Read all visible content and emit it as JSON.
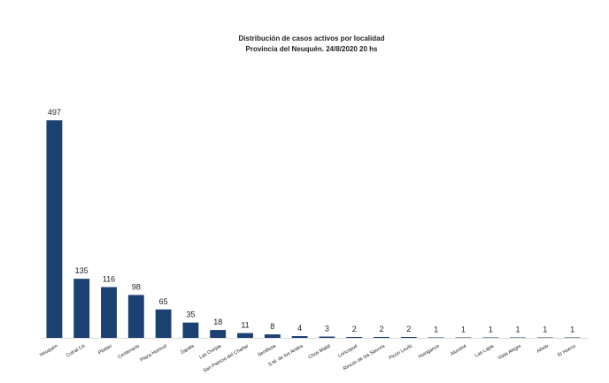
{
  "chart_data": {
    "type": "bar",
    "title": "Distribución de casos activos por localidad",
    "subtitle": "Provincia del Neuquén.  24/8/2020 20 hs",
    "categories": [
      "Neuquén",
      "Cutral Có",
      "Plottier",
      "Centenario",
      "Plaza Huincul",
      "Zapala",
      "Las Ovejas",
      "San Patricio del Chañar",
      "Senillosa",
      "S.M. de los Andes",
      "Chos Malal",
      "Loncopué",
      "Rincón de los Sauces",
      "Picún Leufú",
      "Huinganco",
      "Aluminé",
      "Las Lajas",
      "Vista Alegre",
      "Añelo",
      "El Huecu"
    ],
    "values": [
      497,
      135,
      116,
      98,
      65,
      35,
      18,
      11,
      8,
      4,
      3,
      2,
      2,
      2,
      1,
      1,
      1,
      1,
      1,
      1
    ],
    "color": "#1b4072"
  }
}
